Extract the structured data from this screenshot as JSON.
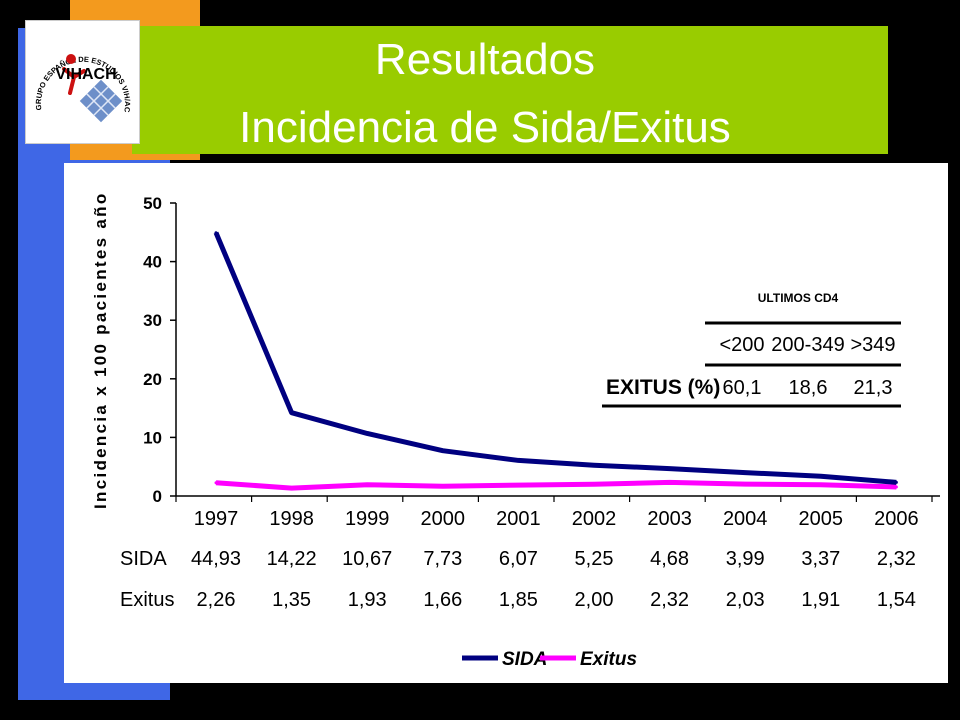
{
  "title": {
    "line1": "Resultados",
    "line2": "Incidencia de Sida/Exitus"
  },
  "logo": {
    "arc_text": "GRUPO ESPAÑOL DE ESTUDIOS VIH/ACH",
    "mark_text": "VIHACH"
  },
  "colors": {
    "background": "#000000",
    "title_band": "#99cc00",
    "accent_blue": "#3f67e6",
    "accent_orange": "#f39a1e",
    "sida_line": "#000080",
    "exitus_line": "#ff00ff"
  },
  "chart_data": {
    "type": "line",
    "categories": [
      "1997",
      "1998",
      "1999",
      "2000",
      "2001",
      "2002",
      "2003",
      "2004",
      "2005",
      "2006"
    ],
    "series": [
      {
        "name": "SIDA",
        "values": [
          44.93,
          14.22,
          10.67,
          7.73,
          6.07,
          5.25,
          4.68,
          3.99,
          3.37,
          2.32
        ],
        "labels": [
          "44,93",
          "14,22",
          "10,67",
          "7,73",
          "6,07",
          "5,25",
          "4,68",
          "3,99",
          "3,37",
          "2,32"
        ]
      },
      {
        "name": "Exitus",
        "values": [
          2.26,
          1.35,
          1.93,
          1.66,
          1.85,
          2.0,
          2.32,
          2.03,
          1.91,
          1.54
        ],
        "labels": [
          "2,26",
          "1,35",
          "1,93",
          "1,66",
          "1,85",
          "2,00",
          "2,32",
          "2,03",
          "1,91",
          "1,54"
        ]
      }
    ],
    "ylabel": "Incidencia x 100 pacientes año",
    "ylim": [
      0,
      50
    ],
    "yticks": [
      0,
      10,
      20,
      30,
      40,
      50
    ],
    "legend_position": "bottom",
    "grid": false
  },
  "inset": {
    "title": "ULTIMOS CD4",
    "headers": [
      "<200",
      "200-349",
      ">349"
    ],
    "row_label": "EXITUS (%)",
    "values": [
      "60,1",
      "18,6",
      "21,3"
    ]
  }
}
